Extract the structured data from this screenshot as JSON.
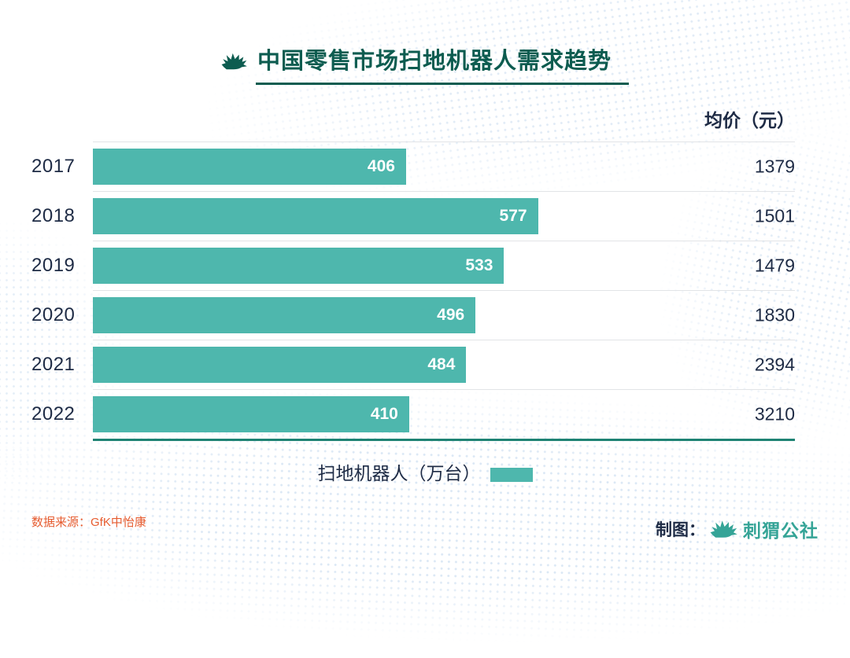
{
  "page": {
    "title": "中国零售市场扫地机器人需求趋势",
    "price_header": "均价（元）",
    "legend_label": "扫地机器人（万台）",
    "source": "数据来源：GfK中怡康",
    "credit_label": "制图：",
    "brand": "刺猬公社"
  },
  "colors": {
    "bar": "#4eb7ad",
    "title": "#0d5c50",
    "axis": "#1f8374",
    "text": "#1e2b45",
    "source": "#e65c30",
    "brand": "#35a497"
  },
  "chart_data": {
    "type": "bar",
    "orientation": "horizontal",
    "title": "中国零售市场扫地机器人需求趋势",
    "categories": [
      "2017",
      "2018",
      "2019",
      "2020",
      "2021",
      "2022"
    ],
    "series": [
      {
        "name": "扫地机器人（万台）",
        "unit": "万台",
        "values": [
          406,
          577,
          533,
          496,
          484,
          410
        ]
      },
      {
        "name": "均价（元）",
        "unit": "元",
        "values": [
          1379,
          1501,
          1479,
          1830,
          2394,
          3210
        ]
      }
    ],
    "xlim": [
      0,
      910
    ],
    "legend_position": "bottom",
    "grid": "row-separator-lines",
    "bar_label_position": "inside-end"
  },
  "rows": [
    {
      "year": "2017",
      "units": "406",
      "price": "1379",
      "value": 406
    },
    {
      "year": "2018",
      "units": "577",
      "price": "1501",
      "value": 577
    },
    {
      "year": "2019",
      "units": "533",
      "price": "1479",
      "value": 533
    },
    {
      "year": "2020",
      "units": "496",
      "price": "1830",
      "value": 496
    },
    {
      "year": "2021",
      "units": "484",
      "price": "2394",
      "value": 484
    },
    {
      "year": "2022",
      "units": "410",
      "price": "3210",
      "value": 410
    }
  ]
}
